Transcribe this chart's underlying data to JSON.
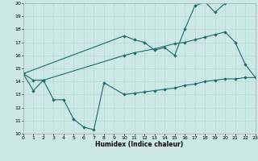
{
  "xlabel": "Humidex (Indice chaleur)",
  "bg_color": "#cce8e5",
  "line_color": "#1a6b6b",
  "grid_color": "#b8d8d4",
  "xlim": [
    0,
    23
  ],
  "ylim": [
    10,
    20
  ],
  "xticks": [
    0,
    1,
    2,
    3,
    4,
    5,
    6,
    7,
    8,
    9,
    10,
    11,
    12,
    13,
    14,
    15,
    16,
    17,
    18,
    19,
    20,
    21,
    22,
    23
  ],
  "yticks": [
    10,
    11,
    12,
    13,
    14,
    15,
    16,
    17,
    18,
    19,
    20
  ],
  "line1_x": [
    0,
    1,
    2,
    3,
    4,
    5,
    6,
    7,
    8,
    10,
    11,
    12,
    13,
    14,
    15,
    16,
    17,
    18,
    19,
    20,
    21,
    22,
    23
  ],
  "line1_y": [
    14.6,
    13.3,
    14.1,
    12.6,
    12.6,
    11.1,
    10.5,
    10.3,
    13.9,
    13.0,
    13.1,
    13.2,
    13.3,
    13.4,
    13.5,
    13.7,
    13.8,
    14.0,
    14.1,
    14.2,
    14.2,
    14.3,
    14.3
  ],
  "line2_x": [
    0,
    1,
    2,
    10,
    11,
    13,
    15,
    16,
    17,
    18,
    19,
    20,
    21,
    22,
    23
  ],
  "line2_y": [
    14.6,
    14.1,
    14.1,
    16.0,
    16.2,
    16.5,
    16.9,
    17.0,
    17.2,
    17.4,
    17.6,
    17.8,
    17.0,
    15.3,
    14.3
  ],
  "line3_x": [
    0,
    10,
    11,
    12,
    13,
    14,
    15,
    16,
    17,
    18,
    19,
    20
  ],
  "line3_y": [
    14.6,
    17.5,
    17.2,
    17.0,
    16.4,
    16.6,
    16.0,
    18.0,
    19.8,
    20.1,
    19.3,
    20.0
  ]
}
